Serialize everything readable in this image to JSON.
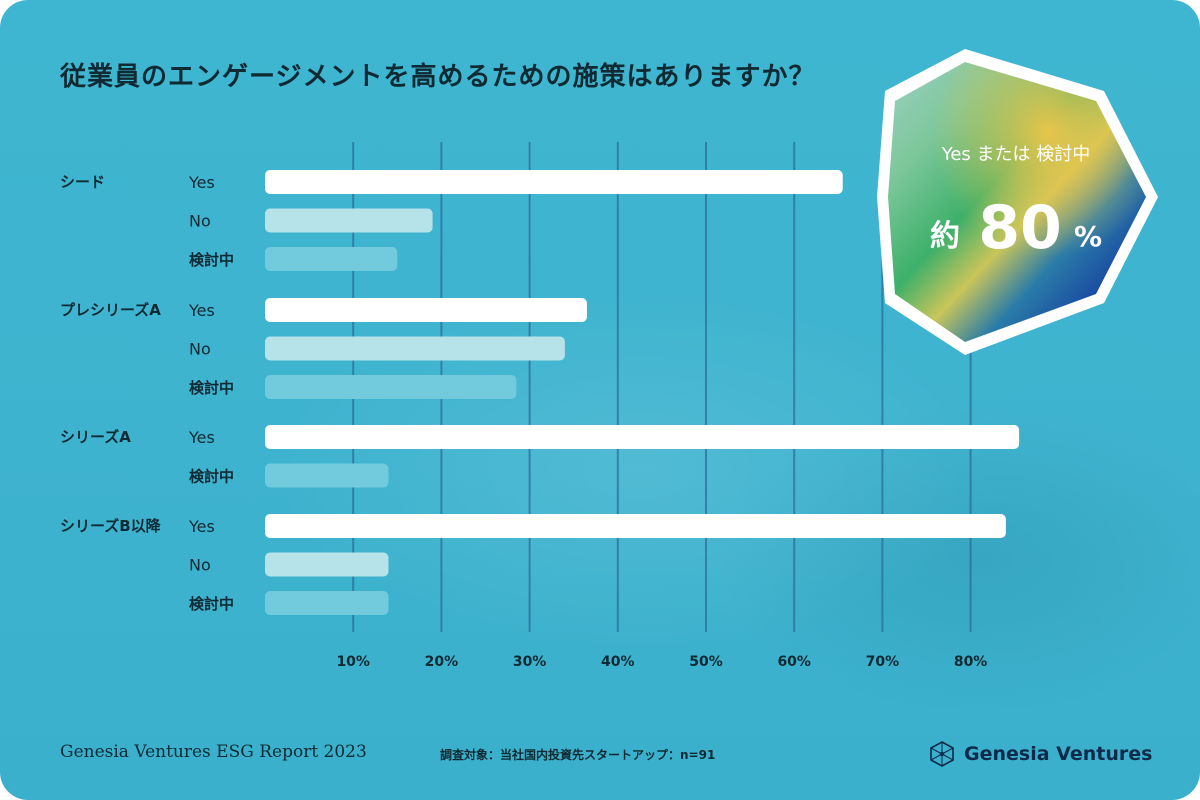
{
  "title": "従業員のエンゲージメントを高めるための施策はありますか？",
  "badge": {
    "subtitle": "Yes または 検討中",
    "prefix": "約",
    "value": "80",
    "unit": "%"
  },
  "footer": {
    "report": "Genesia Ventures ESG Report 2023",
    "note": "調査対象：当社国内投資先スタートアップ：n=91",
    "brand": "Genesia Ventures"
  },
  "colors": {
    "yes": "#ffffff",
    "no": "#b6e2ea",
    "considering": "#71cbdd",
    "gridline": "#2a6f9c",
    "text": "#102a33"
  },
  "chart_data": {
    "type": "bar",
    "orientation": "horizontal",
    "xlim": [
      0,
      90
    ],
    "ticks": [
      "10%",
      "20%",
      "30%",
      "40%",
      "50%",
      "60%",
      "70%",
      "80%"
    ],
    "tick_values": [
      10,
      20,
      30,
      40,
      50,
      60,
      70,
      80
    ],
    "groups": [
      {
        "name": "シード",
        "bars": [
          {
            "label": "Yes",
            "value": 65.5,
            "kind": "yes"
          },
          {
            "label": "No",
            "value": 19,
            "kind": "no"
          },
          {
            "label": "検討中",
            "value": 15,
            "kind": "considering"
          }
        ]
      },
      {
        "name": "プレシリーズA",
        "bars": [
          {
            "label": "Yes",
            "value": 36.5,
            "kind": "yes"
          },
          {
            "label": "No",
            "value": 34,
            "kind": "no"
          },
          {
            "label": "検討中",
            "value": 28.5,
            "kind": "considering"
          }
        ]
      },
      {
        "name": "シリーズA",
        "bars": [
          {
            "label": "Yes",
            "value": 85.5,
            "kind": "yes"
          },
          {
            "label": "検討中",
            "value": 14,
            "kind": "considering"
          }
        ]
      },
      {
        "name": "シリーズB以降",
        "bars": [
          {
            "label": "Yes",
            "value": 84,
            "kind": "yes"
          },
          {
            "label": "No",
            "value": 14,
            "kind": "no"
          },
          {
            "label": "検討中",
            "value": 14,
            "kind": "considering"
          }
        ]
      }
    ]
  }
}
